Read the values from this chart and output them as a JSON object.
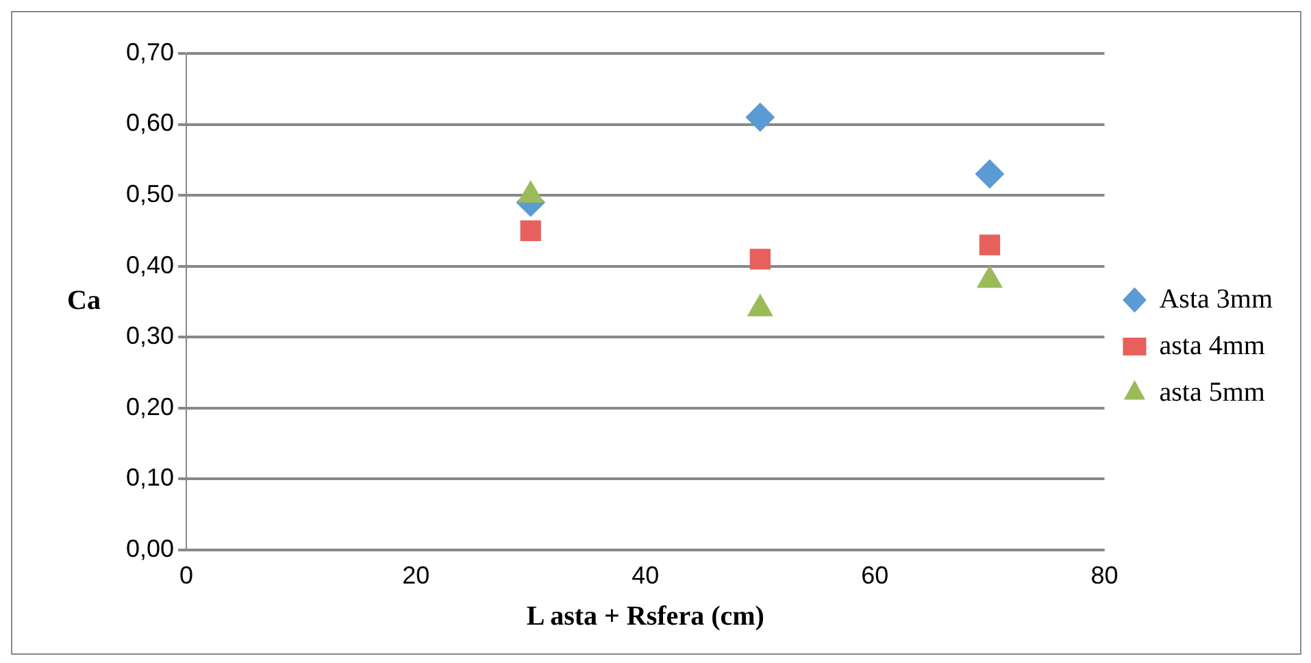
{
  "chart_data": {
    "type": "scatter",
    "xlabel": "L asta + Rsfera (cm)",
    "ylabel": "Ca",
    "xlim": [
      0,
      80
    ],
    "xticks": [
      0,
      20,
      40,
      60,
      80
    ],
    "ylim": [
      0,
      0.7
    ],
    "yticks": [
      {
        "value": 0,
        "label": "0,00"
      },
      {
        "value": 0.1,
        "label": "0,10"
      },
      {
        "value": 0.2,
        "label": "0,20"
      },
      {
        "value": 0.3,
        "label": "0,30"
      },
      {
        "value": 0.4,
        "label": "0,40"
      },
      {
        "value": 0.5,
        "label": "0,50"
      },
      {
        "value": 0.6,
        "label": "0,60"
      },
      {
        "value": 0.7,
        "label": "0,70"
      }
    ],
    "grid": "y",
    "legend": "right",
    "series": [
      {
        "name": "Asta 3mm",
        "color": "#5b9bd5",
        "marker": "diamond",
        "x": [
          30,
          50,
          70
        ],
        "values": [
          0.49,
          0.61,
          0.53
        ]
      },
      {
        "name": "asta 4mm",
        "color": "#e8605c",
        "marker": "square",
        "x": [
          30,
          50,
          70
        ],
        "values": [
          0.45,
          0.41,
          0.43
        ]
      },
      {
        "name": "asta 5mm",
        "color": "#9bbb59",
        "marker": "triangle",
        "x": [
          30,
          50,
          70
        ],
        "values": [
          0.5,
          0.34,
          0.38
        ]
      }
    ]
  }
}
